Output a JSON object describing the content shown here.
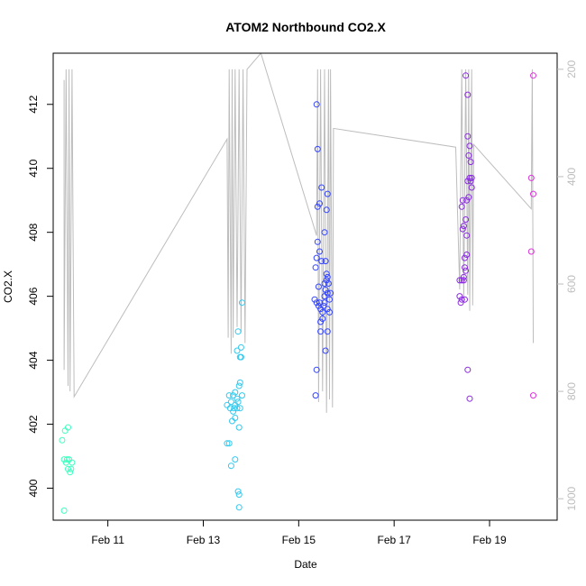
{
  "chart_data": {
    "type": "scatter",
    "title": "ATOM2 Northbound CO2.X",
    "xlabel": "Date",
    "ylabel": "CO2.X",
    "xlim": [
      "2016-02-09T20:30",
      "2016-02-20T10:00"
    ],
    "ylim": [
      399.0,
      413.6
    ],
    "x_ticks": [
      {
        "value": "2016-02-11",
        "label": "Feb 11"
      },
      {
        "value": "2016-02-13",
        "label": "Feb 13"
      },
      {
        "value": "2016-02-15",
        "label": "Feb 15"
      },
      {
        "value": "2016-02-17",
        "label": "Feb 17"
      },
      {
        "value": "2016-02-19",
        "label": "Feb 19"
      }
    ],
    "y_ticks": [
      400,
      402,
      404,
      406,
      408,
      410,
      412
    ],
    "y2": {
      "ylim": [
        1040,
        170
      ],
      "ticks": [
        200,
        400,
        600,
        800,
        1000
      ],
      "color": "#bdbdbd"
    },
    "grid": false,
    "legend": "none",
    "point_colors": [
      "#3fffc0",
      "#33c9ee",
      "#3344ff",
      "#8a2be2",
      "#dd33dd"
    ],
    "altitude_line": [
      [
        "2016-02-10T02:00",
        220
      ],
      [
        "2016-02-10T02:00",
        760
      ],
      [
        "2016-02-10T03:00",
        200
      ],
      [
        "2016-02-10T04:00",
        790
      ],
      [
        "2016-02-10T04:30",
        200
      ],
      [
        "2016-02-10T05:00",
        800
      ],
      [
        "2016-02-10T06:00",
        200
      ],
      [
        "2016-02-10T07:00",
        810
      ],
      [
        "2016-02-13T12:00",
        330
      ],
      [
        "2016-02-13T12:30",
        700
      ],
      [
        "2016-02-13T13:00",
        200
      ],
      [
        "2016-02-13T14:00",
        730
      ],
      [
        "2016-02-13T14:30",
        200
      ],
      [
        "2016-02-13T15:00",
        700
      ],
      [
        "2016-02-13T16:00",
        200
      ],
      [
        "2016-02-13T17:00",
        680
      ],
      [
        "2016-02-13T18:00",
        200
      ],
      [
        "2016-02-13T19:00",
        690
      ],
      [
        "2016-02-13T20:00",
        200
      ],
      [
        "2016-02-13T21:00",
        710
      ],
      [
        "2016-02-13T22:00",
        200
      ],
      [
        "2016-02-14T05:00",
        170
      ],
      [
        "2016-02-15T09:00",
        510
      ],
      [
        "2016-02-15T09:30",
        200
      ],
      [
        "2016-02-15T10:00",
        820
      ],
      [
        "2016-02-15T11:00",
        200
      ],
      [
        "2016-02-15T12:00",
        800
      ],
      [
        "2016-02-15T13:00",
        200
      ],
      [
        "2016-02-15T14:00",
        840
      ],
      [
        "2016-02-15T15:00",
        200
      ],
      [
        "2016-02-15T15:30",
        815
      ],
      [
        "2016-02-15T16:00",
        200
      ],
      [
        "2016-02-15T17:00",
        830
      ],
      [
        "2016-02-15T17:30",
        310
      ],
      [
        "2016-02-18T07:00",
        345
      ],
      [
        "2016-02-18T09:00",
        610
      ],
      [
        "2016-02-18T10:00",
        200
      ],
      [
        "2016-02-18T11:00",
        630
      ],
      [
        "2016-02-18T12:00",
        200
      ],
      [
        "2016-02-18T13:00",
        620
      ],
      [
        "2016-02-18T13:30",
        200
      ],
      [
        "2016-02-18T14:00",
        650
      ],
      [
        "2016-02-18T15:00",
        200
      ],
      [
        "2016-02-18T15:30",
        640
      ],
      [
        "2016-02-18T16:00",
        340
      ],
      [
        "2016-02-19T21:00",
        460
      ],
      [
        "2016-02-19T21:30",
        200
      ],
      [
        "2016-02-19T22:00",
        710
      ]
    ],
    "series": [
      {
        "color": "#3fffc0",
        "points": [
          [
            "2016-02-10T01:00",
            401.5
          ],
          [
            "2016-02-10T02:00",
            399.3
          ],
          [
            "2016-02-10T02:00",
            400.9
          ],
          [
            "2016-02-10T02:30",
            401.8
          ],
          [
            "2016-02-10T03:00",
            400.8
          ],
          [
            "2016-02-10T03:30",
            400.9
          ],
          [
            "2016-02-10T04:00",
            401.9
          ],
          [
            "2016-02-10T04:00",
            400.6
          ],
          [
            "2016-02-10T04:30",
            400.9
          ],
          [
            "2016-02-10T05:00",
            400.5
          ],
          [
            "2016-02-10T05:30",
            400.6
          ],
          [
            "2016-02-10T06:00",
            400.8
          ]
        ]
      },
      {
        "color": "#33c9ee",
        "points": [
          [
            "2016-02-13T12:00",
            402.6
          ],
          [
            "2016-02-13T12:00",
            401.4
          ],
          [
            "2016-02-13T13:00",
            402.9
          ],
          [
            "2016-02-13T13:00",
            401.4
          ],
          [
            "2016-02-13T13:30",
            402.5
          ],
          [
            "2016-02-13T14:00",
            402.7
          ],
          [
            "2016-02-13T14:00",
            400.7
          ],
          [
            "2016-02-13T14:30",
            402.1
          ],
          [
            "2016-02-13T15:00",
            402.9
          ],
          [
            "2016-02-13T15:00",
            402.4
          ],
          [
            "2016-02-13T15:30",
            402.5
          ],
          [
            "2016-02-13T16:00",
            403.0
          ],
          [
            "2016-02-13T16:00",
            402.6
          ],
          [
            "2016-02-13T16:00",
            402.2
          ],
          [
            "2016-02-13T16:00",
            400.9
          ],
          [
            "2016-02-13T17:00",
            404.3
          ],
          [
            "2016-02-13T17:00",
            402.8
          ],
          [
            "2016-02-13T17:00",
            402.5
          ],
          [
            "2016-02-13T17:30",
            404.9
          ],
          [
            "2016-02-13T17:30",
            402.7
          ],
          [
            "2016-02-13T17:30",
            399.9
          ],
          [
            "2016-02-13T18:00",
            403.2
          ],
          [
            "2016-02-13T18:00",
            401.9
          ],
          [
            "2016-02-13T18:00",
            399.8
          ],
          [
            "2016-02-13T18:00",
            399.4
          ],
          [
            "2016-02-13T18:30",
            404.1
          ],
          [
            "2016-02-13T18:30",
            403.3
          ],
          [
            "2016-02-13T18:30",
            402.5
          ],
          [
            "2016-02-13T19:00",
            404.4
          ],
          [
            "2016-02-13T19:00",
            404.1
          ],
          [
            "2016-02-13T19:30",
            405.8
          ],
          [
            "2016-02-13T19:30",
            402.9
          ]
        ]
      },
      {
        "color": "#3344ff",
        "points": [
          [
            "2016-02-15T08:00",
            405.9
          ],
          [
            "2016-02-15T08:30",
            406.9
          ],
          [
            "2016-02-15T08:30",
            402.9
          ],
          [
            "2016-02-15T09:00",
            412.0
          ],
          [
            "2016-02-15T09:00",
            407.2
          ],
          [
            "2016-02-15T09:00",
            405.8
          ],
          [
            "2016-02-15T09:00",
            403.7
          ],
          [
            "2016-02-15T09:30",
            410.6
          ],
          [
            "2016-02-15T09:30",
            408.8
          ],
          [
            "2016-02-15T09:30",
            407.7
          ],
          [
            "2016-02-15T10:00",
            406.3
          ],
          [
            "2016-02-15T10:00",
            405.7
          ],
          [
            "2016-02-15T10:30",
            408.9
          ],
          [
            "2016-02-15T10:30",
            407.4
          ],
          [
            "2016-02-15T10:30",
            405.8
          ],
          [
            "2016-02-15T11:00",
            405.6
          ],
          [
            "2016-02-15T11:00",
            405.2
          ],
          [
            "2016-02-15T11:00",
            404.9
          ],
          [
            "2016-02-15T11:30",
            409.4
          ],
          [
            "2016-02-15T11:30",
            407.1
          ],
          [
            "2016-02-15T12:00",
            405.5
          ],
          [
            "2016-02-15T12:00",
            405.3
          ],
          [
            "2016-02-15T12:30",
            405.7
          ],
          [
            "2016-02-15T13:00",
            408.0
          ],
          [
            "2016-02-15T13:00",
            406.4
          ],
          [
            "2016-02-15T13:00",
            406.0
          ],
          [
            "2016-02-15T13:00",
            405.8
          ],
          [
            "2016-02-15T13:30",
            407.1
          ],
          [
            "2016-02-15T13:30",
            406.2
          ],
          [
            "2016-02-15T13:30",
            404.3
          ],
          [
            "2016-02-15T14:00",
            408.7
          ],
          [
            "2016-02-15T14:00",
            406.7
          ],
          [
            "2016-02-15T14:00",
            406.5
          ],
          [
            "2016-02-15T14:30",
            409.2
          ],
          [
            "2016-02-15T14:30",
            406.6
          ],
          [
            "2016-02-15T14:30",
            406.1
          ],
          [
            "2016-02-15T14:30",
            405.6
          ],
          [
            "2016-02-15T14:30",
            404.9
          ],
          [
            "2016-02-15T15:00",
            406.4
          ],
          [
            "2016-02-15T15:30",
            405.9
          ],
          [
            "2016-02-15T15:30",
            405.5
          ],
          [
            "2016-02-15T16:00",
            406.1
          ]
        ]
      },
      {
        "color": "#8a2be2",
        "points": [
          [
            "2016-02-18T09:00",
            406.5
          ],
          [
            "2016-02-18T09:00",
            406.0
          ],
          [
            "2016-02-18T09:30",
            405.8
          ],
          [
            "2016-02-18T10:00",
            408.8
          ],
          [
            "2016-02-18T10:00",
            406.5
          ],
          [
            "2016-02-18T10:00",
            405.9
          ],
          [
            "2016-02-18T10:30",
            409.0
          ],
          [
            "2016-02-18T10:30",
            408.1
          ],
          [
            "2016-02-18T11:00",
            408.2
          ],
          [
            "2016-02-18T11:00",
            406.6
          ],
          [
            "2016-02-18T11:00",
            406.5
          ],
          [
            "2016-02-18T11:30",
            407.2
          ],
          [
            "2016-02-18T11:30",
            406.9
          ],
          [
            "2016-02-18T11:30",
            405.9
          ],
          [
            "2016-02-18T12:00",
            412.9
          ],
          [
            "2016-02-18T12:00",
            408.4
          ],
          [
            "2016-02-18T12:00",
            406.8
          ],
          [
            "2016-02-18T12:30",
            409.0
          ],
          [
            "2016-02-18T12:30",
            407.9
          ],
          [
            "2016-02-18T12:30",
            407.3
          ],
          [
            "2016-02-18T13:00",
            412.3
          ],
          [
            "2016-02-18T13:00",
            411.0
          ],
          [
            "2016-02-18T13:00",
            409.6
          ],
          [
            "2016-02-18T13:00",
            403.7
          ],
          [
            "2016-02-18T13:30",
            410.4
          ],
          [
            "2016-02-18T13:30",
            409.1
          ],
          [
            "2016-02-18T14:00",
            410.7
          ],
          [
            "2016-02-18T14:00",
            409.7
          ],
          [
            "2016-02-18T14:00",
            402.8
          ],
          [
            "2016-02-18T14:30",
            410.2
          ],
          [
            "2016-02-18T14:30",
            409.6
          ],
          [
            "2016-02-18T15:00",
            409.4
          ],
          [
            "2016-02-18T15:00",
            409.7
          ]
        ]
      },
      {
        "color": "#dd33dd",
        "points": [
          [
            "2016-02-19T21:00",
            407.4
          ],
          [
            "2016-02-19T21:00",
            409.7
          ],
          [
            "2016-02-19T22:00",
            412.9
          ],
          [
            "2016-02-19T22:00",
            409.2
          ],
          [
            "2016-02-19T22:00",
            402.9
          ]
        ]
      }
    ]
  }
}
